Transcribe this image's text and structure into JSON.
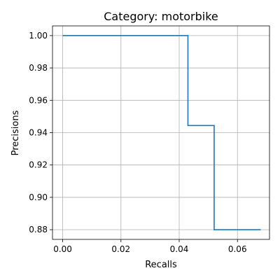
{
  "chart_data": {
    "type": "line",
    "title": "Category: motorbike",
    "xlabel": "Recalls",
    "ylabel": "Precisions",
    "xlim": [
      -0.0035,
      0.071
    ],
    "ylim": [
      0.874,
      1.006
    ],
    "x_ticks": [
      0.0,
      0.02,
      0.04,
      0.06
    ],
    "x_tick_labels": [
      "0.00",
      "0.02",
      "0.04",
      "0.06"
    ],
    "y_ticks": [
      0.88,
      0.9,
      0.92,
      0.94,
      0.96,
      0.98,
      1.0
    ],
    "y_tick_labels": [
      "0.88",
      "0.90",
      "0.92",
      "0.94",
      "0.96",
      "0.98",
      "1.00"
    ],
    "grid": true,
    "series": [
      {
        "color": "#1f77b4",
        "points": [
          {
            "x": 0.0,
            "y": 1.0
          },
          {
            "x": 0.043,
            "y": 1.0
          },
          {
            "x": 0.043,
            "y": 0.9444
          },
          {
            "x": 0.052,
            "y": 0.9444
          },
          {
            "x": 0.052,
            "y": 0.88
          },
          {
            "x": 0.068,
            "y": 0.88
          }
        ]
      }
    ]
  }
}
